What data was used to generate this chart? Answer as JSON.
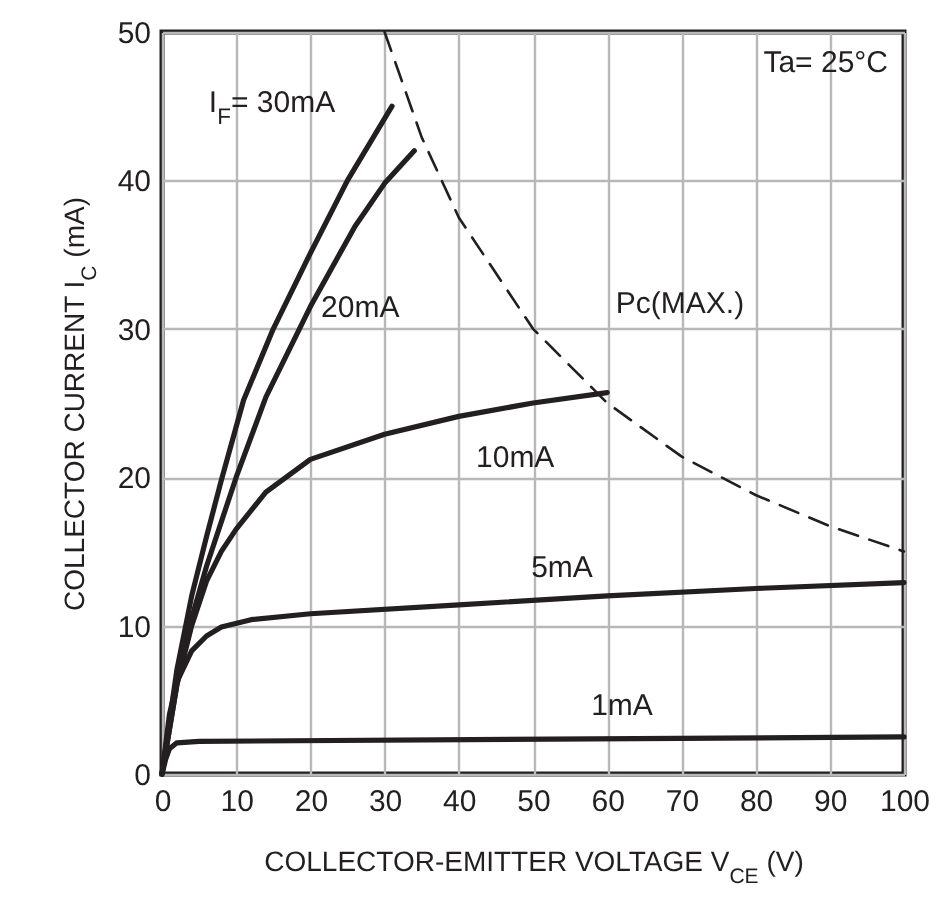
{
  "chart_data": {
    "type": "line",
    "xlabel": "COLLECTOR-EMITTER VOLTAGE V$_{CE}$ (V)",
    "ylabel": "COLLECTOR CURRENT I$_{C}$ (mA)",
    "xlim": [
      0,
      100
    ],
    "ylim": [
      0,
      50
    ],
    "xticks": [
      0,
      10,
      20,
      30,
      40,
      50,
      60,
      70,
      80,
      90,
      100
    ],
    "yticks": [
      0,
      10,
      20,
      30,
      40,
      50
    ],
    "grid": true,
    "series": [
      {
        "name": "1mA",
        "color": "#231f20",
        "line_style": "solid",
        "x": [
          0,
          0.5,
          1,
          2,
          5,
          100
        ],
        "values": [
          0,
          1,
          1.7,
          2.1,
          2.2,
          2.5
        ]
      },
      {
        "name": "5mA",
        "color": "#231f20",
        "line_style": "solid",
        "x": [
          0,
          1,
          2,
          4,
          6,
          8,
          12,
          20,
          40,
          60,
          80,
          100
        ],
        "values": [
          0,
          4,
          6.2,
          8.3,
          9.3,
          9.9,
          10.4,
          10.8,
          11.4,
          12,
          12.5,
          12.9
        ]
      },
      {
        "name": "10mA",
        "color": "#231f20",
        "line_style": "solid",
        "x": [
          0,
          2,
          4,
          6,
          8,
          10,
          14,
          20,
          30,
          40,
          50,
          60
        ],
        "values": [
          0,
          6,
          10,
          13,
          15,
          16.5,
          19,
          21.2,
          22.9,
          24.1,
          25,
          25.7
        ]
      },
      {
        "name": "20mA",
        "color": "#231f20",
        "line_style": "solid",
        "x": [
          0,
          2,
          4,
          6,
          10,
          14,
          20,
          26,
          30,
          34
        ],
        "values": [
          0,
          6,
          10.5,
          14,
          20,
          25.4,
          31.5,
          36.9,
          39.8,
          42
        ]
      },
      {
        "name": "I$_{F}$= 30mA",
        "color": "#231f20",
        "line_style": "solid",
        "x": [
          0,
          2,
          4,
          6,
          8,
          11,
          15,
          20,
          25,
          31
        ],
        "values": [
          0,
          7,
          12,
          16,
          19.8,
          25.2,
          30,
          35.1,
          40,
          45
        ]
      },
      {
        "name": "Pc(MAX.)",
        "color": "#231f20",
        "line_style": "dashed",
        "x": [
          30,
          35,
          40,
          50,
          60,
          70,
          80,
          90,
          100
        ],
        "values": [
          50,
          42.9,
          37.5,
          30,
          25,
          21.4,
          18.8,
          16.7,
          15
        ]
      }
    ],
    "annotations": [
      "Ta= 25°C"
    ]
  }
}
